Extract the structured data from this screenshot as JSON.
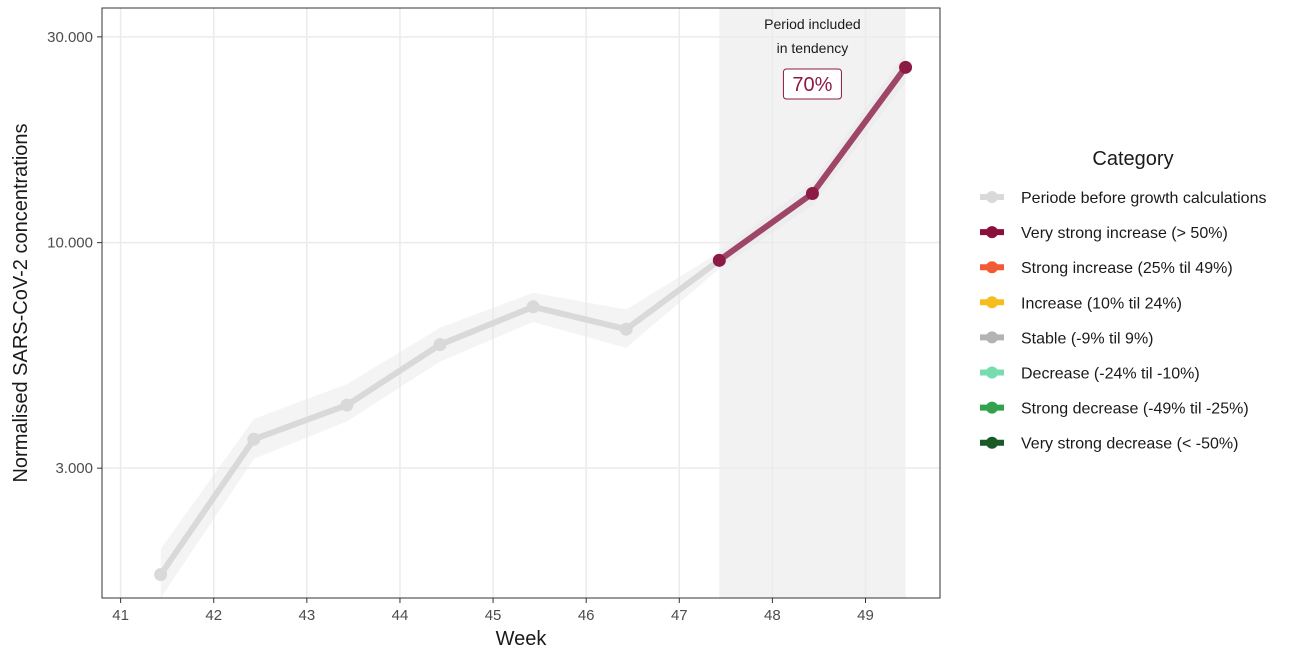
{
  "chart_data": {
    "type": "line",
    "xlabel": "Week",
    "ylabel": "Normalised SARS-CoV-2 concentrations",
    "y_scale": "log",
    "x_ticks": [
      "41",
      "42",
      "43",
      "44",
      "45",
      "46",
      "47",
      "48",
      "49"
    ],
    "x_tick_values": [
      41,
      42,
      43,
      44,
      45,
      46,
      47,
      48,
      49
    ],
    "y_ticks": [
      "3.000",
      "10.000",
      "30.000"
    ],
    "y_tick_values": [
      3000,
      10000,
      30000
    ],
    "xlim": [
      40.8,
      49.8
    ],
    "ylim": [
      1500,
      35000
    ],
    "grid": true,
    "legend_position": "right",
    "series": [
      {
        "name": "Periode before growth calculations",
        "color": "#d9d9d9",
        "x": [
          41.43,
          42.43,
          43.43,
          44.43,
          45.43,
          46.43,
          47.43
        ],
        "values": [
          1700,
          3500,
          4200,
          5800,
          7100,
          6300,
          9100
        ],
        "ribbon_low": [
          1500,
          3150,
          3850,
          5300,
          6550,
          5700,
          8700
        ],
        "ribbon_high": [
          1950,
          3900,
          4700,
          6350,
          7650,
          7000,
          9500
        ]
      },
      {
        "name": "Very strong increase (> 50%)",
        "color": "#8b1a45",
        "x": [
          47.43,
          48.43,
          49.43
        ],
        "values": [
          9100,
          13000,
          25500
        ],
        "ribbon_low": [
          8700,
          12200,
          23500
        ],
        "ribbon_high": [
          9500,
          13800,
          27500
        ]
      }
    ],
    "shaded_region": {
      "x_start": 47.43,
      "x_end": 49.43,
      "color": "#f2f2f2"
    },
    "annotation": {
      "line1": "Period included",
      "line2": "in tendency",
      "value": "70%"
    },
    "legend": {
      "title": "Category",
      "items": [
        {
          "label": "Periode before growth calculations",
          "color": "#d9d9d9"
        },
        {
          "label": "Very strong increase (> 50%)",
          "color": "#8b0f3d"
        },
        {
          "label": "Strong increase (25% til 49%)",
          "color": "#f45a34"
        },
        {
          "label": "Increase (10% til 24%)",
          "color": "#f7bd1d"
        },
        {
          "label": "Stable (-9% til 9%)",
          "color": "#b3b3b3"
        },
        {
          "label": "Decrease (-24% til -10%)",
          "color": "#78dcae"
        },
        {
          "label": "Strong decrease (-49% til -25%)",
          "color": "#31a34e"
        },
        {
          "label": "Very strong decrease (< -50%)",
          "color": "#1a5a29"
        }
      ]
    }
  }
}
